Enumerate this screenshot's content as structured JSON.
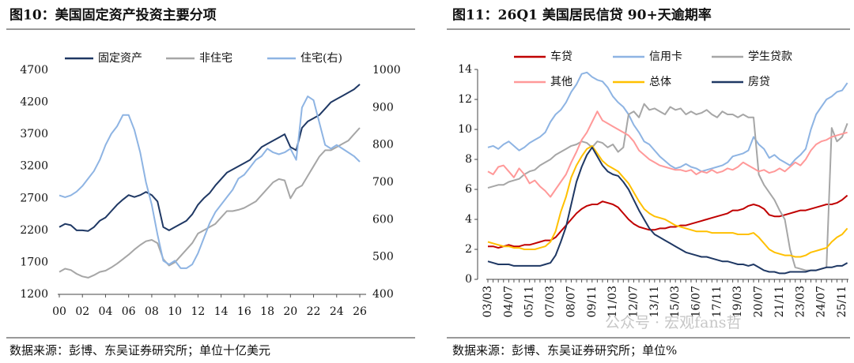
{
  "chart_data": [
    {
      "type": "line",
      "title": "图10：美国固定资产投资主要分项",
      "source": "数据来源：彭博、东吴证券研究所；单位十亿美元",
      "x": [
        2000,
        2000.5,
        2001,
        2001.5,
        2002,
        2002.5,
        2003,
        2003.5,
        2004,
        2004.5,
        2005,
        2005.5,
        2006,
        2006.5,
        2007,
        2007.5,
        2008,
        2008.5,
        2009,
        2009.5,
        2010,
        2010.5,
        2011,
        2011.5,
        2012,
        2012.5,
        2013,
        2013.5,
        2014,
        2014.5,
        2015,
        2015.5,
        2016,
        2016.5,
        2017,
        2017.5,
        2018,
        2018.5,
        2019,
        2019.5,
        2020,
        2020.5,
        2021,
        2021.5,
        2022,
        2022.5,
        2023,
        2023.5,
        2024,
        2024.5,
        2025,
        2025.5,
        2026
      ],
      "xlim": [
        2000,
        2026
      ],
      "xticks": [
        {
          "value": 2000,
          "label": "00"
        },
        {
          "value": 2002,
          "label": "02"
        },
        {
          "value": 2004,
          "label": "04"
        },
        {
          "value": 2006,
          "label": "06"
        },
        {
          "value": 2008,
          "label": "08"
        },
        {
          "value": 2010,
          "label": "10"
        },
        {
          "value": 2012,
          "label": "12"
        },
        {
          "value": 2014,
          "label": "14"
        },
        {
          "value": 2016,
          "label": "16"
        },
        {
          "value": 2018,
          "label": "18"
        },
        {
          "value": 2020,
          "label": "20"
        },
        {
          "value": 2022,
          "label": "22"
        },
        {
          "value": 2024,
          "label": "24"
        },
        {
          "value": 2026,
          "label": "26"
        }
      ],
      "ylim": [
        1200,
        4700
      ],
      "yticks": [
        1200,
        1700,
        2200,
        2700,
        3200,
        3700,
        4200,
        4700
      ],
      "y2lim": [
        400,
        1000
      ],
      "y2ticks": [
        400,
        500,
        600,
        700,
        800,
        900,
        1000
      ],
      "series": [
        {
          "name": "固定资产",
          "color": "#1f3864",
          "values": [
            2250,
            2300,
            2280,
            2200,
            2200,
            2190,
            2250,
            2350,
            2400,
            2500,
            2600,
            2680,
            2750,
            2720,
            2750,
            2800,
            2750,
            2650,
            2250,
            2200,
            2250,
            2300,
            2350,
            2450,
            2600,
            2700,
            2780,
            2900,
            3000,
            3100,
            3150,
            3200,
            3250,
            3300,
            3400,
            3500,
            3550,
            3600,
            3650,
            3700,
            3500,
            3450,
            3800,
            3900,
            3950,
            4000,
            4100,
            4200,
            4250,
            4300,
            4350,
            4400,
            4480
          ]
        },
        {
          "name": "非住宅",
          "color": "#a6a6a6",
          "values": [
            1550,
            1600,
            1580,
            1520,
            1480,
            1460,
            1500,
            1550,
            1570,
            1620,
            1680,
            1750,
            1820,
            1900,
            1970,
            2030,
            2050,
            2000,
            1750,
            1650,
            1700,
            1800,
            1900,
            2000,
            2150,
            2200,
            2250,
            2300,
            2400,
            2500,
            2500,
            2520,
            2550,
            2600,
            2650,
            2750,
            2850,
            2950,
            3000,
            2980,
            2700,
            2850,
            2900,
            3050,
            3200,
            3350,
            3450,
            3450,
            3500,
            3550,
            3600,
            3700,
            3800
          ]
        },
        {
          "name": "住宅(右)",
          "color": "#8eb4e3",
          "axis": "y2",
          "values": [
            665,
            660,
            665,
            675,
            690,
            710,
            730,
            760,
            800,
            830,
            850,
            880,
            880,
            840,
            780,
            700,
            640,
            560,
            490,
            480,
            490,
            470,
            470,
            480,
            510,
            550,
            590,
            620,
            640,
            660,
            680,
            710,
            720,
            740,
            760,
            770,
            790,
            780,
            775,
            780,
            790,
            760,
            900,
            930,
            920,
            860,
            800,
            790,
            800,
            790,
            780,
            770,
            755
          ]
        }
      ]
    },
    {
      "type": "line",
      "title": "图11：26Q1 美国居民信贷 90+天逾期率",
      "source": "数据来源：彭博、东吴证券研究所；单位%",
      "categories": [
        "03/03",
        null,
        null,
        null,
        "04/07",
        null,
        null,
        null,
        "05/11",
        null,
        null,
        null,
        "07/03",
        null,
        null,
        null,
        "08/07",
        null,
        null,
        null,
        "09/11",
        null,
        null,
        null,
        "11/03",
        null,
        null,
        null,
        "12/07",
        null,
        null,
        null,
        "13/11",
        null,
        null,
        null,
        "15/03",
        null,
        null,
        null,
        "16/07",
        null,
        null,
        null,
        "17/11",
        null,
        null,
        null,
        "19/03",
        null,
        null,
        null,
        "20/07",
        null,
        null,
        null,
        "21/11",
        null,
        null,
        null,
        "23/03",
        null,
        null,
        null,
        "24/07",
        null,
        null,
        null,
        "25/11",
        null
      ],
      "ylim": [
        0,
        14
      ],
      "yticks": [
        0,
        2,
        4,
        6,
        8,
        10,
        12,
        14
      ],
      "series": [
        {
          "name": "车贷",
          "color": "#c00000",
          "values": [
            2.2,
            2.2,
            2.1,
            2.2,
            2.3,
            2.2,
            2.2,
            2.3,
            2.3,
            2.4,
            2.5,
            2.6,
            2.6,
            2.8,
            3.2,
            3.6,
            4.0,
            4.4,
            4.7,
            4.9,
            5.0,
            5.0,
            5.2,
            5.1,
            5.0,
            4.8,
            4.4,
            4.0,
            3.7,
            3.5,
            3.4,
            3.3,
            3.3,
            3.4,
            3.4,
            3.5,
            3.5,
            3.6,
            3.6,
            3.7,
            3.8,
            3.9,
            4.0,
            4.1,
            4.2,
            4.3,
            4.4,
            4.6,
            4.6,
            4.7,
            4.9,
            5.0,
            4.9,
            4.7,
            4.3,
            4.2,
            4.2,
            4.3,
            4.4,
            4.5,
            4.6,
            4.6,
            4.7,
            4.8,
            4.9,
            5.0,
            5.0,
            5.1,
            5.3,
            5.6
          ]
        },
        {
          "name": "信用卡",
          "color": "#8eb4e3",
          "values": [
            8.8,
            8.9,
            8.7,
            9.0,
            9.2,
            8.9,
            8.6,
            8.8,
            9.1,
            9.3,
            9.5,
            9.8,
            10.5,
            11.0,
            11.3,
            11.8,
            12.5,
            13.0,
            13.7,
            13.8,
            13.5,
            13.3,
            13.2,
            12.8,
            12.2,
            11.8,
            11.5,
            11.0,
            10.3,
            9.8,
            9.2,
            9.0,
            8.6,
            8.2,
            7.9,
            7.6,
            7.4,
            7.5,
            7.7,
            7.5,
            7.4,
            7.2,
            7.3,
            7.4,
            7.5,
            7.6,
            7.8,
            8.2,
            8.3,
            8.4,
            8.6,
            9.5,
            9.0,
            8.7,
            8.1,
            8.3,
            8.0,
            7.8,
            7.6,
            8.0,
            8.3,
            8.7,
            10.0,
            11.0,
            11.5,
            12.0,
            12.2,
            12.5,
            12.6,
            13.1
          ]
        },
        {
          "name": "学生贷款",
          "color": "#a6a6a6",
          "values": [
            6.1,
            6.2,
            6.3,
            6.3,
            6.5,
            6.6,
            6.7,
            7.0,
            7.2,
            7.3,
            7.6,
            7.8,
            8.0,
            8.3,
            8.5,
            8.7,
            8.9,
            9.0,
            9.2,
            9.1,
            8.8,
            9.2,
            9.1,
            8.8,
            9.0,
            8.5,
            8.8,
            11.0,
            11.2,
            10.8,
            11.7,
            11.3,
            11.4,
            11.2,
            11.0,
            11.5,
            11.3,
            11.4,
            11.0,
            11.2,
            11.0,
            11.1,
            11.3,
            11.0,
            10.8,
            11.2,
            11.0,
            11.0,
            10.8,
            11.0,
            10.8,
            10.8,
            7.0,
            6.3,
            5.8,
            5.3,
            4.6,
            4.0,
            2.0,
            0.8,
            0.7,
            0.6,
            0.6,
            0.6,
            0.7,
            0.8,
            10.1,
            9.2,
            9.5,
            10.4
          ]
        },
        {
          "name": "其他",
          "color": "#ff9999",
          "values": [
            7.2,
            7.0,
            7.5,
            7.6,
            7.2,
            6.8,
            7.4,
            7.0,
            6.4,
            6.6,
            6.2,
            5.9,
            5.5,
            6.0,
            6.5,
            7.0,
            7.8,
            8.5,
            9.3,
            9.8,
            10.5,
            11.2,
            10.6,
            10.4,
            10.2,
            10.0,
            9.8,
            9.6,
            9.2,
            8.6,
            8.3,
            8.0,
            7.8,
            7.6,
            7.5,
            7.4,
            7.3,
            7.3,
            7.2,
            7.3,
            7.0,
            7.2,
            7.1,
            7.3,
            7.1,
            7.2,
            7.4,
            7.3,
            7.5,
            7.8,
            7.6,
            7.4,
            7.2,
            7.3,
            7.1,
            7.2,
            7.4,
            7.2,
            7.5,
            7.8,
            7.6,
            8.0,
            8.6,
            9.0,
            9.2,
            9.3,
            9.5,
            9.6,
            9.7,
            9.8
          ]
        },
        {
          "name": "总体",
          "color": "#ffc000",
          "values": [
            2.5,
            2.4,
            2.3,
            2.2,
            2.2,
            2.1,
            2.1,
            2.0,
            2.0,
            2.0,
            2.1,
            2.2,
            2.5,
            3.2,
            4.5,
            5.5,
            6.8,
            7.6,
            8.2,
            8.7,
            8.9,
            8.4,
            7.9,
            7.6,
            7.4,
            7.2,
            6.8,
            6.4,
            5.8,
            5.2,
            4.7,
            4.4,
            4.2,
            4.1,
            4.0,
            3.8,
            3.6,
            3.5,
            3.4,
            3.3,
            3.2,
            3.2,
            3.2,
            3.1,
            3.1,
            3.1,
            3.1,
            3.1,
            3.0,
            3.0,
            3.0,
            3.1,
            2.8,
            2.4,
            2.0,
            1.8,
            1.7,
            1.6,
            1.6,
            1.5,
            1.5,
            1.6,
            1.8,
            1.9,
            2.0,
            2.1,
            2.5,
            2.8,
            3.0,
            3.4
          ]
        },
        {
          "name": "房贷",
          "color": "#1f3864",
          "values": [
            1.2,
            1.1,
            1.0,
            1.0,
            1.0,
            0.9,
            0.9,
            0.9,
            0.9,
            0.9,
            0.9,
            1.0,
            1.1,
            1.6,
            2.5,
            3.5,
            5.0,
            6.5,
            7.5,
            8.3,
            8.8,
            8.2,
            7.6,
            7.2,
            7.0,
            6.9,
            6.5,
            6.0,
            5.3,
            4.6,
            4.0,
            3.4,
            3.0,
            2.8,
            2.6,
            2.4,
            2.2,
            2.0,
            1.8,
            1.7,
            1.6,
            1.5,
            1.5,
            1.4,
            1.3,
            1.2,
            1.2,
            1.1,
            1.0,
            1.0,
            0.9,
            1.0,
            0.8,
            0.6,
            0.5,
            0.5,
            0.4,
            0.4,
            0.5,
            0.5,
            0.5,
            0.5,
            0.6,
            0.6,
            0.7,
            0.8,
            0.8,
            0.9,
            0.9,
            1.1
          ]
        }
      ]
    }
  ],
  "watermark": "公众号 · 宏观fans哲"
}
